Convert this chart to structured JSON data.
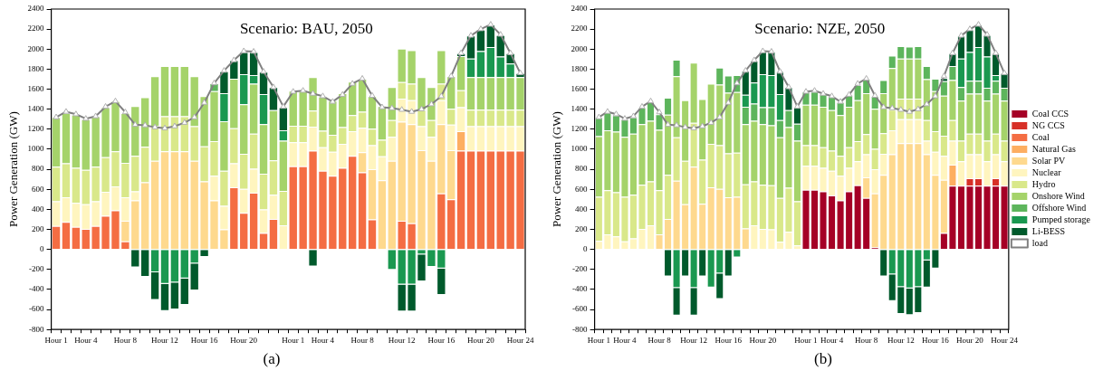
{
  "chart_data": [
    {
      "type": "bar",
      "stacked": true,
      "title": "Scenario: BAU, 2050",
      "ylabel": "Power Generation (GW)",
      "legend": false,
      "grid": false,
      "annotations": [
        "(a)"
      ],
      "categories": [
        "Hour 1",
        null,
        null,
        "Hour 4",
        null,
        null,
        null,
        "Hour 8",
        null,
        null,
        null,
        "Hour 12",
        null,
        null,
        null,
        "Hour 16",
        null,
        null,
        null,
        "Hour 20",
        null,
        null,
        null,
        null,
        "Hour 1",
        null,
        null,
        "Hour 4",
        null,
        null,
        null,
        "Hour 8",
        null,
        null,
        null,
        "Hour 12",
        null,
        null,
        null,
        "Hour 16",
        null,
        null,
        null,
        "Hour 20",
        null,
        null,
        null,
        "Hour 24"
      ],
      "ylim": [
        -800,
        2400
      ],
      "yticks": [
        -800,
        -600,
        -400,
        -200,
        0,
        200,
        400,
        600,
        800,
        1000,
        1200,
        1400,
        1600,
        1800,
        2000,
        2200,
        2400
      ],
      "series": [
        {
          "color": "#f46d43",
          "values": [
            235,
            275,
            225,
            205,
            235,
            335,
            390,
            80,
            null,
            null,
            null,
            null,
            null,
            null,
            null,
            null,
            null,
            null,
            620,
            365,
            565,
            165,
            305,
            null,
            830,
            830,
            985,
            785,
            735,
            815,
            935,
            770,
            300,
            null,
            null,
            285,
            260,
            null,
            null,
            560,
            500,
            985,
            985,
            985,
            985,
            985,
            985,
            985
          ]
        },
        {
          "color": "#fdae61",
          "values": [
            null,
            null,
            null,
            null,
            null,
            null,
            null,
            null,
            null,
            null,
            null,
            null,
            null,
            null,
            null,
            null,
            null,
            null,
            null,
            null,
            null,
            null,
            null,
            null,
            null,
            null,
            null,
            null,
            null,
            null,
            null,
            null,
            null,
            null,
            null,
            null,
            null,
            null,
            null,
            null,
            null,
            195,
            null,
            null,
            null,
            null,
            null,
            null
          ]
        },
        {
          "color": "#fed98e",
          "values": [
            null,
            null,
            null,
            null,
            null,
            null,
            null,
            205,
            490,
            670,
            885,
            980,
            980,
            980,
            885,
            680,
            490,
            200,
            null,
            null,
            null,
            null,
            null,
            null,
            null,
            null,
            null,
            null,
            null,
            null,
            null,
            200,
            500,
            690,
            885,
            990,
            990,
            990,
            885,
            690,
            490,
            null,
            null,
            null,
            null,
            null,
            null,
            null
          ]
        },
        {
          "color": "#fff5bf",
          "values": [
            245,
            245,
            240,
            245,
            245,
            240,
            240,
            235,
            90,
            null,
            null,
            null,
            null,
            null,
            null,
            null,
            245,
            235,
            240,
            240,
            240,
            235,
            240,
            240,
            240,
            240,
            240,
            235,
            240,
            240,
            245,
            245,
            240,
            240,
            240,
            230,
            240,
            240,
            240,
            240,
            255,
            240,
            245,
            245,
            245,
            245,
            245,
            245
          ]
        },
        {
          "color": "#d9e88a",
          "values": [
            345,
            340,
            350,
            345,
            345,
            345,
            350,
            345,
            355,
            355,
            345,
            350,
            350,
            350,
            345,
            350,
            345,
            350,
            350,
            350,
            350,
            355,
            345,
            345,
            165,
            165,
            160,
            165,
            170,
            165,
            160,
            160,
            165,
            165,
            165,
            165,
            165,
            165,
            165,
            165,
            160,
            170,
            165,
            165,
            165,
            165,
            165,
            165
          ]
        },
        {
          "color": "#a5d36a",
          "values": [
            495,
            500,
            530,
            505,
            505,
            500,
            500,
            495,
            495,
            495,
            500,
            500,
            500,
            500,
            500,
            500,
            500,
            495,
            495,
            495,
            500,
            495,
            500,
            500,
            350,
            350,
            335,
            340,
            340,
            340,
            335,
            330,
            325,
            335,
            330,
            335,
            335,
            325,
            330,
            335,
            325,
            340,
            325,
            325,
            325,
            325,
            325,
            325
          ]
        },
        {
          "color": "#5db55c",
          "values": [
            null,
            null,
            null,
            null,
            null,
            null,
            null,
            null,
            null,
            null,
            null,
            null,
            null,
            null,
            null,
            null,
            80,
            null,
            null,
            null,
            null,
            null,
            null,
            null,
            null,
            null,
            null,
            null,
            null,
            null,
            null,
            null,
            null,
            null,
            null,
            null,
            null,
            null,
            null,
            null,
            null,
            null,
            null,
            null,
            null,
            null,
            null,
            null
          ]
        },
        {
          "color": "#1a9850",
          "values": [
            null,
            null,
            null,
            null,
            null,
            null,
            null,
            null,
            null,
            null,
            -230,
            -345,
            -330,
            -290,
            -140,
            null,
            null,
            280,
            null,
            300,
            85,
            300,
            null,
            105,
            null,
            null,
            null,
            null,
            null,
            null,
            null,
            null,
            null,
            null,
            -205,
            -350,
            -350,
            -50,
            -175,
            -190,
            null,
            null,
            185,
            260,
            300,
            205,
            135,
            null
          ]
        },
        {
          "color": "#005a2c",
          "values": [
            null,
            null,
            null,
            null,
            null,
            null,
            null,
            null,
            -180,
            -275,
            -275,
            -270,
            -270,
            -265,
            -270,
            -75,
            null,
            220,
            185,
            220,
            230,
            225,
            230,
            230,
            null,
            null,
            -170,
            null,
            null,
            null,
            null,
            null,
            null,
            null,
            null,
            -270,
            -270,
            -270,
            null,
            -265,
            null,
            30,
            230,
            215,
            225,
            215,
            105,
            40
          ]
        },
        {
          "type": "line",
          "marker": "triangle",
          "color": "#808080",
          "values": [
            1320,
            1375,
            1350,
            1305,
            1330,
            1425,
            1480,
            1370,
            1245,
            1240,
            1220,
            1210,
            1230,
            1265,
            1320,
            1465,
            1660,
            1785,
            1890,
            1980,
            1975,
            1775,
            1620,
            1425,
            1575,
            1585,
            1555,
            1530,
            1475,
            1545,
            1655,
            1705,
            1535,
            1420,
            1410,
            1395,
            1375,
            1400,
            1450,
            1530,
            1730,
            1960,
            2135,
            2200,
            2245,
            2145,
            1960,
            1760
          ]
        }
      ]
    },
    {
      "type": "bar",
      "stacked": true,
      "title": "Scenario: NZE, 2050",
      "ylabel": "Power Generation (GW)",
      "legend": "right",
      "grid": false,
      "annotations": [
        "(b)"
      ],
      "categories": [
        "Hour 1",
        null,
        null,
        "Hour 4",
        null,
        null,
        null,
        "Hour 8",
        null,
        null,
        null,
        "Hour 12",
        null,
        null,
        null,
        "Hour 16",
        null,
        null,
        null,
        "Hour 20",
        null,
        null,
        null,
        null,
        "Hour 1",
        null,
        null,
        "Hour 4",
        null,
        null,
        null,
        "Hour 8",
        null,
        null,
        null,
        "Hour 12",
        null,
        null,
        null,
        "Hour 16",
        null,
        null,
        null,
        "Hour 20",
        null,
        null,
        null,
        "Hour 24"
      ],
      "ylim": [
        -800,
        2400
      ],
      "yticks": [
        -800,
        -600,
        -400,
        -200,
        0,
        200,
        400,
        600,
        800,
        1000,
        1200,
        1400,
        1600,
        1800,
        2000,
        2200,
        2400
      ],
      "series": [
        {
          "name": "Coal CCS",
          "color": "#a50026",
          "values": [
            null,
            null,
            null,
            null,
            null,
            null,
            null,
            null,
            null,
            null,
            null,
            null,
            null,
            null,
            null,
            null,
            null,
            null,
            null,
            null,
            null,
            null,
            null,
            null,
            595,
            595,
            580,
            540,
            490,
            580,
            640,
            515,
            20,
            null,
            null,
            null,
            null,
            null,
            null,
            null,
            165,
            635,
            635,
            635,
            635,
            635,
            635,
            635
          ]
        },
        {
          "name": "NG CCS",
          "color": "#d73027",
          "values": [
            null,
            null,
            null,
            null,
            null,
            null,
            null,
            null,
            null,
            null,
            null,
            null,
            null,
            null,
            null,
            null,
            null,
            null,
            null,
            null,
            null,
            null,
            null,
            null,
            null,
            null,
            null,
            null,
            null,
            null,
            null,
            null,
            null,
            null,
            null,
            null,
            null,
            null,
            null,
            null,
            null,
            null,
            null,
            75,
            75,
            null,
            75,
            null
          ]
        },
        {
          "name": "Coal",
          "color": "#f46d43",
          "values": [
            null,
            null,
            null,
            null,
            null,
            null,
            null,
            null,
            null,
            null,
            null,
            null,
            null,
            null,
            null,
            null,
            null,
            null,
            null,
            null,
            null,
            null,
            null,
            null,
            null,
            null,
            null,
            null,
            null,
            null,
            null,
            null,
            null,
            null,
            null,
            null,
            null,
            null,
            null,
            null,
            null,
            null,
            null,
            null,
            null,
            null,
            null,
            null
          ]
        },
        {
          "name": "Natural Gas",
          "color": "#fdae61",
          "values": [
            null,
            null,
            null,
            null,
            null,
            null,
            null,
            null,
            null,
            null,
            null,
            null,
            null,
            null,
            null,
            null,
            null,
            null,
            null,
            null,
            null,
            null,
            null,
            null,
            null,
            null,
            null,
            null,
            null,
            null,
            null,
            null,
            null,
            null,
            null,
            null,
            null,
            null,
            null,
            null,
            null,
            210,
            null,
            null,
            null,
            null,
            null,
            null
          ]
        },
        {
          "name": "Solar PV",
          "color": "#fed98e",
          "values": [
            null,
            null,
            null,
            null,
            null,
            null,
            null,
            150,
            305,
            685,
            450,
            825,
            455,
            620,
            605,
            520,
            525,
            210,
            null,
            null,
            null,
            null,
            null,
            null,
            null,
            null,
            null,
            null,
            null,
            null,
            null,
            205,
            540,
            745,
            950,
            1060,
            1060,
            1060,
            950,
            745,
            530,
            null,
            null,
            null,
            null,
            null,
            null,
            null
          ]
        },
        {
          "name": "Nuclear",
          "color": "#fff5bf",
          "values": [
            85,
            150,
            130,
            80,
            110,
            205,
            240,
            null,
            null,
            null,
            null,
            null,
            null,
            null,
            null,
            null,
            null,
            null,
            240,
            205,
            200,
            75,
            175,
            40,
            240,
            240,
            235,
            245,
            245,
            235,
            240,
            230,
            240,
            210,
            240,
            240,
            240,
            240,
            135,
            230,
            240,
            240,
            245,
            240,
            240,
            245,
            240,
            245
          ]
        },
        {
          "name": "Hydro",
          "color": "#d9e88a",
          "values": [
            440,
            440,
            440,
            445,
            435,
            440,
            440,
            440,
            440,
            435,
            435,
            440,
            440,
            435,
            435,
            440,
            440,
            440,
            440,
            440,
            440,
            440,
            440,
            440,
            205,
            205,
            205,
            200,
            200,
            205,
            200,
            200,
            205,
            205,
            205,
            205,
            205,
            205,
            205,
            205,
            200,
            205,
            205,
            205,
            205,
            205,
            205,
            205
          ]
        },
        {
          "name": "Onshore Wind",
          "color": "#a5d36a",
          "values": [
            605,
            600,
            605,
            600,
            610,
            605,
            605,
            605,
            600,
            610,
            605,
            600,
            605,
            600,
            605,
            605,
            605,
            600,
            605,
            605,
            600,
            605,
            605,
            605,
            405,
            405,
            405,
            405,
            405,
            405,
            410,
            410,
            400,
            400,
            415,
            400,
            400,
            400,
            410,
            400,
            400,
            400,
            400,
            400,
            400,
            400,
            400,
            400
          ]
        },
        {
          "name": "Offshore Wind",
          "color": "#5db55c",
          "values": [
            190,
            180,
            165,
            175,
            165,
            165,
            185,
            155,
            170,
            165,
            null,
            null,
            null,
            null,
            170,
            170,
            170,
            175,
            170,
            170,
            180,
            170,
            170,
            170,
            130,
            130,
            130,
            140,
            130,
            120,
            150,
            145,
            125,
            130,
            125,
            125,
            120,
            125,
            130,
            125,
            145,
            140,
            135,
            130,
            130,
            130,
            130,
            130
          ]
        },
        {
          "name": "Pumped storage",
          "color": "#1a9850",
          "values": [
            null,
            null,
            null,
            null,
            null,
            null,
            null,
            null,
            null,
            -385,
            null,
            -385,
            null,
            -380,
            -240,
            null,
            -80,
            120,
            210,
            330,
            320,
            260,
            null,
            null,
            null,
            null,
            null,
            null,
            null,
            null,
            null,
            null,
            null,
            null,
            -250,
            -375,
            -390,
            -375,
            -110,
            null,
            null,
            null,
            285,
            285,
            335,
            310,
            55,
            null
          ]
        },
        {
          "name": "Li-BESS",
          "color": "#005a2c",
          "values": [
            null,
            null,
            null,
            null,
            null,
            null,
            null,
            null,
            -270,
            -275,
            -270,
            -275,
            -270,
            null,
            -255,
            -270,
            null,
            240,
            220,
            225,
            235,
            230,
            230,
            165,
            null,
            null,
            null,
            null,
            null,
            null,
            null,
            null,
            null,
            -270,
            -265,
            -270,
            -265,
            -260,
            -270,
            -190,
            30,
            130,
            230,
            225,
            225,
            215,
            220,
            145
          ]
        },
        {
          "name": "load",
          "type": "line",
          "marker": "triangle",
          "color": "#808080",
          "values": [
            1320,
            1375,
            1350,
            1305,
            1330,
            1425,
            1480,
            1370,
            1245,
            1240,
            1220,
            1210,
            1230,
            1265,
            1320,
            1465,
            1660,
            1785,
            1890,
            1980,
            1975,
            1775,
            1620,
            1425,
            1575,
            1585,
            1555,
            1530,
            1475,
            1545,
            1655,
            1705,
            1535,
            1420,
            1410,
            1395,
            1375,
            1400,
            1450,
            1530,
            1730,
            1960,
            2135,
            2200,
            2245,
            2145,
            1960,
            1760
          ]
        }
      ]
    }
  ]
}
